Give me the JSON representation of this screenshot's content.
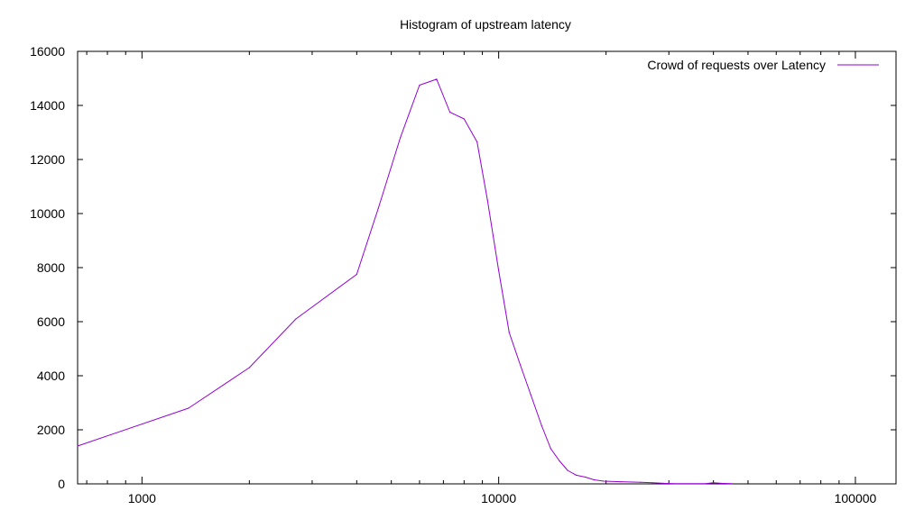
{
  "chart_data": {
    "type": "line",
    "title": "Histogram of upstream latency",
    "xlabel": "",
    "ylabel": "",
    "x_scale": "log",
    "xlim": [
      660,
      130000
    ],
    "ylim": [
      0,
      16000
    ],
    "x_ticks": [
      1000,
      10000,
      100000
    ],
    "x_tick_labels": [
      "1000",
      "10000",
      "100000"
    ],
    "y_ticks": [
      0,
      2000,
      4000,
      6000,
      8000,
      10000,
      12000,
      14000,
      16000
    ],
    "y_tick_labels": [
      "0",
      "2000",
      "4000",
      "6000",
      "8000",
      "10000",
      "12000",
      "14000",
      "16000"
    ],
    "grid": false,
    "legend_position": "top-right",
    "series": [
      {
        "name": "Crowd of requests over Latency",
        "color": "#9400d3",
        "x": [
          660,
          1350,
          2000,
          2700,
          4000,
          4600,
          5300,
          6000,
          6700,
          7300,
          8000,
          8700,
          9300,
          10000,
          10700,
          11500,
          12300,
          13200,
          14000,
          14800,
          15600,
          16500,
          17500,
          18500,
          19700,
          22000,
          25000,
          27000,
          29000,
          31000,
          38000,
          40000,
          42000,
          45000
        ],
        "y": [
          1400,
          2800,
          4300,
          6100,
          7750,
          10200,
          12800,
          14750,
          14970,
          13750,
          13500,
          12650,
          10500,
          7900,
          5600,
          4400,
          3300,
          2150,
          1300,
          850,
          500,
          320,
          250,
          150,
          100,
          80,
          60,
          40,
          20,
          10,
          10,
          40,
          20,
          10
        ]
      }
    ]
  }
}
